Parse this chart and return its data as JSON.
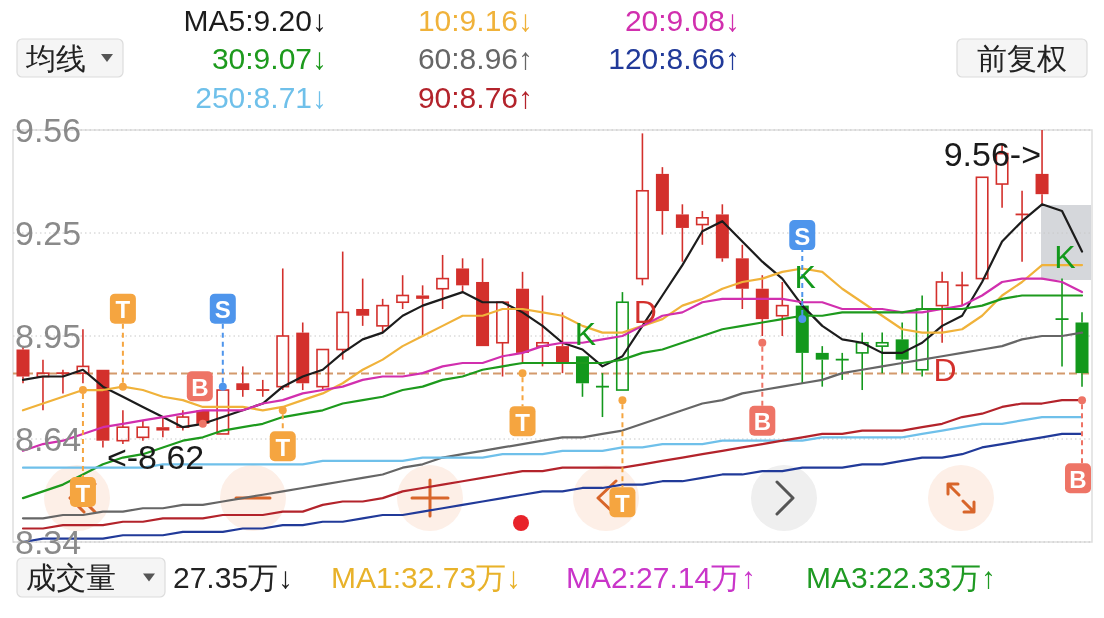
{
  "chart_data": {
    "type": "candlestick",
    "categories": [
      null,
      null,
      null,
      null,
      null,
      null,
      null,
      null,
      null,
      null,
      null,
      null,
      null,
      null,
      null,
      null,
      null,
      null,
      null,
      null,
      null,
      null,
      null,
      null,
      null,
      null,
      null,
      null,
      null,
      null,
      null,
      null,
      null,
      null,
      null,
      null,
      null,
      null,
      null,
      null,
      null,
      null,
      null,
      null,
      null,
      null,
      null,
      null,
      null,
      null,
      null,
      null,
      null,
      null
    ],
    "ohlc": [
      [
        8.91,
        8.92,
        8.81,
        8.83
      ],
      [
        8.83,
        8.88,
        8.73,
        8.84
      ],
      [
        8.84,
        8.85,
        8.78,
        8.84
      ],
      [
        8.84,
        8.97,
        8.81,
        8.86
      ],
      [
        8.85,
        8.85,
        8.62,
        8.64
      ],
      [
        8.64,
        8.73,
        8.63,
        8.68
      ],
      [
        8.65,
        8.7,
        8.64,
        8.68
      ],
      [
        8.68,
        8.71,
        8.65,
        8.67
      ],
      [
        8.68,
        8.73,
        8.67,
        8.71
      ],
      [
        8.73,
        8.73,
        8.69,
        8.69
      ],
      [
        8.66,
        8.79,
        8.66,
        8.79
      ],
      [
        8.81,
        8.86,
        8.77,
        8.79
      ],
      [
        8.79,
        8.82,
        8.77,
        8.79
      ],
      [
        8.8,
        9.15,
        8.79,
        8.95
      ],
      [
        8.96,
        8.99,
        8.79,
        8.81
      ],
      [
        8.8,
        8.91,
        8.79,
        8.91
      ],
      [
        8.91,
        9.2,
        8.88,
        9.02
      ],
      [
        9.03,
        9.12,
        8.98,
        9.01
      ],
      [
        8.98,
        9.06,
        8.96,
        9.04
      ],
      [
        9.05,
        9.13,
        9.03,
        9.07
      ],
      [
        9.07,
        9.1,
        8.95,
        9.06
      ],
      [
        9.09,
        9.19,
        9.03,
        9.12
      ],
      [
        9.15,
        9.18,
        9.08,
        9.1
      ],
      [
        9.11,
        9.18,
        8.92,
        8.92
      ],
      [
        8.93,
        9.05,
        8.83,
        9.05
      ],
      [
        9.09,
        9.14,
        8.87,
        8.9
      ],
      [
        8.92,
        9.07,
        8.86,
        8.93
      ],
      [
        8.92,
        9.02,
        8.84,
        8.87
      ],
      [
        8.89,
        8.89,
        8.77,
        8.81
      ],
      [
        8.8,
        8.84,
        8.71,
        8.8
      ],
      [
        8.79,
        9.08,
        8.79,
        9.05
      ],
      [
        9.12,
        9.55,
        9.1,
        9.38
      ],
      [
        9.43,
        9.45,
        9.25,
        9.32
      ],
      [
        9.31,
        9.34,
        9.17,
        9.27
      ],
      [
        9.28,
        9.32,
        9.22,
        9.3
      ],
      [
        9.31,
        9.34,
        9.17,
        9.18
      ],
      [
        9.18,
        9.22,
        9.03,
        9.09
      ],
      [
        9.09,
        9.13,
        8.95,
        9.0
      ],
      [
        9.01,
        9.11,
        8.95,
        9.04
      ],
      [
        9.04,
        9.06,
        8.81,
        8.9
      ],
      [
        8.9,
        8.92,
        8.8,
        8.88
      ],
      [
        8.88,
        8.9,
        8.82,
        8.88
      ],
      [
        8.9,
        8.96,
        8.79,
        8.93
      ],
      [
        8.92,
        8.96,
        8.84,
        8.93
      ],
      [
        8.94,
        8.99,
        8.84,
        8.88
      ],
      [
        8.85,
        9.07,
        8.83,
        9.03
      ],
      [
        9.04,
        9.14,
        8.93,
        9.11
      ],
      [
        9.1,
        9.14,
        9.04,
        9.1
      ],
      [
        9.12,
        9.42,
        9.12,
        9.42
      ],
      [
        9.4,
        9.52,
        9.33,
        9.49
      ],
      [
        9.31,
        9.38,
        9.17,
        9.31
      ],
      [
        9.43,
        9.56,
        9.34,
        9.37
      ],
      [
        9.0,
        9.12,
        8.86,
        9.0
      ],
      [
        8.99,
        9.02,
        8.8,
        8.84
      ]
    ],
    "colors": [
      "#d3302c",
      "#d3302c",
      "#d3302c",
      "#d3302c",
      "#d3302c",
      "#d3302c",
      "#d3302c",
      "#d3302c",
      "#d3302c",
      "#d3302c",
      "#d3302c",
      "#d3302c",
      "#d3302c",
      "#d3302c",
      "#d3302c",
      "#d3302c",
      "#d3302c",
      "#d3302c",
      "#d3302c",
      "#d3302c",
      "#d3302c",
      "#d3302c",
      "#d3302c",
      "#d3302c",
      "#d3302c",
      "#d3302c",
      "#d3302c",
      "#d3302c",
      "#13981c",
      "#13981c",
      "#13981c",
      "#d3302c",
      "#d3302c",
      "#d3302c",
      "#d3302c",
      "#d3302c",
      "#d3302c",
      "#d3302c",
      "#d3302c",
      "#13981c",
      "#13981c",
      "#13981c",
      "#13981c",
      "#13981c",
      "#13981c",
      "#13981c",
      "#d3302c",
      "#d3302c",
      "#d3302c",
      "#d3302c",
      "#d3302c",
      "#d3302c",
      "#13981c",
      "#13981c"
    ],
    "value_labels": [
      null,
      null,
      null,
      null,
      null,
      null,
      null,
      null,
      null,
      null,
      null,
      null,
      null,
      null,
      null,
      null,
      null,
      null,
      null,
      null,
      null,
      null,
      null,
      null,
      null,
      null,
      null,
      null,
      "K",
      null,
      null,
      "D",
      null,
      null,
      null,
      null,
      null,
      null,
      null,
      "K",
      null,
      null,
      null,
      null,
      null,
      null,
      "D",
      null,
      null,
      null,
      null,
      null,
      "K",
      null
    ],
    "series": [
      {
        "name": "MA5:9.20↓",
        "type": "line",
        "color": "#1c1c1c",
        "values": [
          8.82,
          8.83,
          8.83,
          8.85,
          8.8,
          8.77,
          8.74,
          8.71,
          8.68,
          8.69,
          8.71,
          8.73,
          8.75,
          8.8,
          8.83,
          8.85,
          8.9,
          8.94,
          8.96,
          9.01,
          9.04,
          9.06,
          9.08,
          9.05,
          9.05,
          9.02,
          8.98,
          8.93,
          8.91,
          8.86,
          8.89,
          8.98,
          9.07,
          9.16,
          9.26,
          9.29,
          9.23,
          9.17,
          9.12,
          9.04,
          8.98,
          8.94,
          8.93,
          8.9,
          8.9,
          8.93,
          8.98,
          9.01,
          9.11,
          9.23,
          9.29,
          9.34,
          9.32,
          9.2
        ]
      },
      {
        "name": "10:9.16↓",
        "type": "line",
        "color": "#f0b23a",
        "values": [
          8.73,
          8.75,
          8.77,
          8.79,
          8.79,
          8.8,
          8.79,
          8.77,
          8.76,
          8.74,
          8.74,
          8.74,
          8.73,
          8.74,
          8.76,
          8.78,
          8.81,
          8.85,
          8.88,
          8.92,
          8.95,
          8.98,
          9.01,
          9.01,
          9.03,
          9.03,
          9.02,
          9.01,
          8.98,
          8.96,
          8.96,
          8.98,
          9.0,
          9.04,
          9.06,
          9.09,
          9.11,
          9.12,
          9.14,
          9.15,
          9.14,
          9.09,
          9.05,
          9.01,
          8.97,
          8.96,
          8.96,
          8.97,
          9.01,
          9.07,
          9.11,
          9.16,
          9.16,
          9.16
        ]
      },
      {
        "name": "20:9.08↓",
        "type": "line",
        "color": "#d12fae",
        "values": [
          8.61,
          8.63,
          8.64,
          8.66,
          8.68,
          8.69,
          8.7,
          8.71,
          8.72,
          8.73,
          8.73,
          8.73,
          8.75,
          8.76,
          8.78,
          8.79,
          8.8,
          8.82,
          8.83,
          8.83,
          8.84,
          8.86,
          8.87,
          8.87,
          8.89,
          8.9,
          8.92,
          8.93,
          8.93,
          8.94,
          8.95,
          8.98,
          9.01,
          9.02,
          9.05,
          9.06,
          9.06,
          9.06,
          9.06,
          9.05,
          9.05,
          9.03,
          9.03,
          9.03,
          9.02,
          9.02,
          9.03,
          9.04,
          9.07,
          9.11,
          9.12,
          9.12,
          9.11,
          9.08
        ]
      },
      {
        "name": "30:9.07↓",
        "type": "line",
        "color": "#1d9a1d",
        "values": [
          8.47,
          8.49,
          8.51,
          8.54,
          8.57,
          8.59,
          8.6,
          8.62,
          8.64,
          8.65,
          8.67,
          8.68,
          8.69,
          8.71,
          8.72,
          8.73,
          8.75,
          8.76,
          8.77,
          8.79,
          8.8,
          8.82,
          8.83,
          8.85,
          8.86,
          8.87,
          8.87,
          8.87,
          8.87,
          8.87,
          8.88,
          8.9,
          8.91,
          8.93,
          8.95,
          8.97,
          8.98,
          8.99,
          9.0,
          9.01,
          9.01,
          9.02,
          9.02,
          9.02,
          9.02,
          9.03,
          9.03,
          9.03,
          9.04,
          9.06,
          9.07,
          9.07,
          9.07,
          9.07
        ]
      },
      {
        "name": "60:8.96↑",
        "type": "line",
        "color": "#666666",
        "values": [
          8.41,
          8.41,
          8.42,
          8.42,
          8.43,
          8.43,
          8.44,
          8.44,
          8.45,
          8.45,
          8.46,
          8.47,
          8.48,
          8.49,
          8.5,
          8.51,
          8.52,
          8.53,
          8.54,
          8.56,
          8.57,
          8.59,
          8.6,
          8.61,
          8.62,
          8.63,
          8.64,
          8.65,
          8.65,
          8.66,
          8.67,
          8.69,
          8.71,
          8.73,
          8.75,
          8.76,
          8.78,
          8.79,
          8.8,
          8.81,
          8.82,
          8.84,
          8.85,
          8.86,
          8.87,
          8.88,
          8.89,
          8.9,
          8.91,
          8.92,
          8.94,
          8.95,
          8.95,
          8.96
        ]
      },
      {
        "name": "120:8.66↑",
        "type": "line",
        "color": "#213a99",
        "values": [
          8.34,
          8.35,
          8.35,
          8.35,
          8.35,
          8.36,
          8.36,
          8.36,
          8.37,
          8.37,
          8.37,
          8.38,
          8.38,
          8.39,
          8.39,
          8.4,
          8.4,
          8.41,
          8.42,
          8.42,
          8.43,
          8.44,
          8.45,
          8.46,
          8.47,
          8.48,
          8.49,
          8.49,
          8.5,
          8.5,
          8.51,
          8.51,
          8.52,
          8.52,
          8.53,
          8.54,
          8.54,
          8.55,
          8.55,
          8.56,
          8.56,
          8.56,
          8.57,
          8.57,
          8.58,
          8.59,
          8.59,
          8.6,
          8.62,
          8.63,
          8.64,
          8.65,
          8.66,
          8.66
        ]
      },
      {
        "name": "250:8.71↓",
        "type": "line",
        "color": "#6fc0ea",
        "values": [
          8.56,
          8.56,
          8.56,
          8.56,
          8.56,
          8.56,
          8.56,
          8.57,
          8.57,
          8.57,
          8.57,
          8.57,
          8.57,
          8.57,
          8.57,
          8.58,
          8.58,
          8.58,
          8.58,
          8.58,
          8.59,
          8.59,
          8.59,
          8.59,
          8.6,
          8.6,
          8.6,
          8.61,
          8.61,
          8.61,
          8.62,
          8.62,
          8.63,
          8.63,
          8.63,
          8.64,
          8.64,
          8.64,
          8.64,
          8.64,
          8.65,
          8.65,
          8.65,
          8.65,
          8.65,
          8.66,
          8.67,
          8.68,
          8.69,
          8.69,
          8.7,
          8.71,
          8.71,
          8.71
        ]
      },
      {
        "name": "90:8.76↑",
        "type": "line",
        "color": "#b3232b",
        "values": [
          8.38,
          8.38,
          8.39,
          8.39,
          8.39,
          8.4,
          8.4,
          8.41,
          8.41,
          8.41,
          8.42,
          8.42,
          8.42,
          8.43,
          8.43,
          8.45,
          8.46,
          8.46,
          8.47,
          8.49,
          8.5,
          8.51,
          8.52,
          8.53,
          8.54,
          8.55,
          8.55,
          8.56,
          8.56,
          8.56,
          8.56,
          8.57,
          8.58,
          8.59,
          8.6,
          8.61,
          8.62,
          8.63,
          8.64,
          8.65,
          8.66,
          8.66,
          8.67,
          8.67,
          8.67,
          8.68,
          8.69,
          8.71,
          8.72,
          8.74,
          8.75,
          8.75,
          8.76,
          8.76
        ]
      },
      {
        "type": "scatter",
        "marker": "circle",
        "color": "#f5a540",
        "values": [
          null,
          null,
          null,
          8.79,
          null,
          8.8,
          null,
          null,
          null,
          null,
          null,
          null,
          null,
          8.73,
          null,
          null,
          null,
          null,
          null,
          null,
          null,
          null,
          null,
          null,
          null,
          8.84,
          null,
          null,
          null,
          null,
          8.76,
          null,
          null,
          null,
          null,
          null,
          null,
          null,
          null,
          null,
          null,
          null,
          null,
          null,
          null,
          null,
          null,
          null,
          null,
          null,
          null,
          null,
          null,
          null
        ],
        "value_labels": [
          null,
          null,
          null,
          "T",
          null,
          "T",
          null,
          null,
          null,
          null,
          null,
          null,
          null,
          "T",
          null,
          null,
          null,
          null,
          null,
          null,
          null,
          null,
          null,
          null,
          null,
          "T",
          null,
          null,
          null,
          null,
          "T",
          null,
          null,
          null,
          null,
          null,
          null,
          null,
          null,
          null,
          null,
          null,
          null,
          null,
          null,
          null,
          null,
          null,
          null,
          null,
          null,
          null,
          null,
          null
        ]
      },
      {
        "type": "scatter",
        "marker": "circle",
        "color": "#ee7466",
        "values": [
          null,
          null,
          null,
          null,
          null,
          null,
          null,
          null,
          null,
          8.69,
          null,
          null,
          null,
          null,
          null,
          null,
          null,
          null,
          null,
          null,
          null,
          null,
          null,
          null,
          null,
          null,
          null,
          null,
          null,
          null,
          null,
          null,
          null,
          null,
          null,
          null,
          null,
          8.93,
          null,
          null,
          null,
          null,
          null,
          null,
          null,
          null,
          null,
          null,
          null,
          null,
          null,
          null,
          null,
          8.76
        ],
        "value_labels": [
          null,
          null,
          null,
          null,
          null,
          null,
          null,
          null,
          null,
          "B",
          null,
          null,
          null,
          null,
          null,
          null,
          null,
          null,
          null,
          null,
          null,
          null,
          null,
          null,
          null,
          null,
          null,
          null,
          null,
          null,
          null,
          null,
          null,
          null,
          null,
          null,
          null,
          "B",
          null,
          null,
          null,
          null,
          null,
          null,
          null,
          null,
          null,
          null,
          null,
          null,
          null,
          null,
          null,
          "B"
        ]
      },
      {
        "type": "scatter",
        "marker": "circle",
        "color": "#4e95ec",
        "values": [
          null,
          null,
          null,
          null,
          null,
          null,
          null,
          null,
          null,
          null,
          8.8,
          null,
          null,
          null,
          null,
          null,
          null,
          null,
          null,
          null,
          null,
          null,
          null,
          null,
          null,
          null,
          null,
          null,
          null,
          null,
          null,
          null,
          null,
          null,
          null,
          null,
          null,
          null,
          null,
          9.0,
          null,
          null,
          null,
          null,
          null,
          null,
          null,
          null,
          null,
          null,
          null,
          null,
          null,
          null
        ],
        "value_labels": [
          null,
          null,
          null,
          null,
          null,
          null,
          null,
          null,
          null,
          null,
          "S",
          null,
          null,
          null,
          null,
          null,
          null,
          null,
          null,
          null,
          null,
          null,
          null,
          null,
          null,
          null,
          null,
          null,
          null,
          null,
          null,
          null,
          null,
          null,
          null,
          null,
          null,
          null,
          null,
          "S",
          null,
          null,
          null,
          null,
          null,
          null,
          null,
          null,
          null,
          null,
          null,
          null,
          null,
          null
        ]
      }
    ],
    "ylim": [
      8.34,
      9.56
    ],
    "yticks": [
      9.56,
      {
        "value": 9.255,
        "label": "9.25"
      },
      8.95,
      {
        "value": 8.645,
        "label": "8.64"
      },
      8.34
    ],
    "tick_labels": "y",
    "grid": "y",
    "legend": "top",
    "ref_lines": [
      {
        "axis": "y",
        "value": 8.84,
        "color": "#d39a6c",
        "line_style": "dashed"
      }
    ],
    "annotations": [
      "9.56->",
      "<-8.62",
      "均线",
      "前复权",
      "成交量",
      "27.35万↓",
      "MA1:32.73万↓",
      "MA2:27.14万↑",
      "MA3:22.33万↑"
    ]
  }
}
